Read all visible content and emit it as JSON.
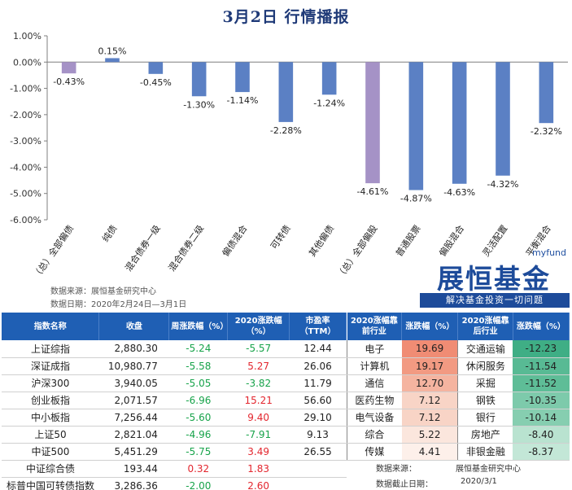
{
  "title": "3月2日  行情播报",
  "chart_data": {
    "type": "bar",
    "categories": [
      "（总）全部偏债",
      "纯债",
      "混合债券一级",
      "混合债券二级",
      "偏债混合",
      "可转债",
      "其他偏债",
      "（总）全部偏股",
      "普通股票",
      "偏股混合",
      "灵活配置",
      "平衡混合"
    ],
    "values": [
      -0.43,
      0.15,
      -0.45,
      -1.3,
      -1.14,
      -2.28,
      -1.24,
      -4.61,
      -4.87,
      -4.63,
      -4.32,
      -2.32
    ],
    "data_labels": [
      "-0.43%",
      "0.15%",
      "-0.45%",
      "-1.30%",
      "-1.14%",
      "-2.28%",
      "-1.24%",
      "-4.61%",
      "-4.87%",
      "-4.63%",
      "-4.32%",
      "-2.32%"
    ],
    "y_ticks": [
      "1.00%",
      "0.00%",
      "-1.00%",
      "-2.00%",
      "-3.00%",
      "-4.00%",
      "-5.00%",
      "-6.00%"
    ],
    "ylim": [
      -6,
      1
    ],
    "grid": false,
    "colors": {
      "highlight": "#a592c6",
      "normal": "#5b80c4",
      "axis": "#7f7f7f"
    },
    "highlighted": [
      0,
      7
    ]
  },
  "source": {
    "line1": "数据来源：展恒基金研究中心",
    "line2": "数据日期：2020年2月24日—3月1日"
  },
  "logo": {
    "myfund": "myfund",
    "main": "展恒基金",
    "slogan": "解决基金投资一切问题"
  },
  "table": {
    "headers": {
      "name": "指数名称",
      "close": "收盘",
      "week": "周涨跌幅（%）",
      "ytd": "2020涨跌幅（%）",
      "pe": "市盈率（TTM）",
      "top_ind": "2020涨幅靠前行业",
      "top_val": "涨跌幅（%）",
      "bot_ind": "2020涨幅靠后行业",
      "bot_val": "涨跌幅（%）"
    },
    "rows": [
      {
        "name": "上证综指",
        "close": "2,880.30",
        "week": "-5.24",
        "ytd": "-5.57",
        "pe": "12.44",
        "top_ind": "电子",
        "top_val": "19.69",
        "bot_ind": "交通运输",
        "bot_val": "-12.23"
      },
      {
        "name": "深证成指",
        "close": "10,980.77",
        "week": "-5.58",
        "ytd": "5.27",
        "pe": "26.06",
        "top_ind": "计算机",
        "top_val": "19.17",
        "bot_ind": "休闲服务",
        "bot_val": "-11.54"
      },
      {
        "name": "沪深300",
        "close": "3,940.05",
        "week": "-5.05",
        "ytd": "-3.82",
        "pe": "11.79",
        "top_ind": "通信",
        "top_val": "12.70",
        "bot_ind": "采掘",
        "bot_val": "-11.52"
      },
      {
        "name": "创业板指",
        "close": "2,071.57",
        "week": "-6.96",
        "ytd": "15.21",
        "pe": "56.60",
        "top_ind": "医药生物",
        "top_val": "7.12",
        "bot_ind": "钢铁",
        "bot_val": "-10.35"
      },
      {
        "name": "中小板指",
        "close": "7,256.44",
        "week": "-5.60",
        "ytd": "9.40",
        "pe": "29.10",
        "top_ind": "电气设备",
        "top_val": "7.12",
        "bot_ind": "银行",
        "bot_val": "-10.14"
      },
      {
        "name": "上证50",
        "close": "2,821.04",
        "week": "-4.96",
        "ytd": "-7.91",
        "pe": "9.13",
        "top_ind": "综合",
        "top_val": "5.22",
        "bot_ind": "房地产",
        "bot_val": "-8.40"
      },
      {
        "name": "中证500",
        "close": "5,451.29",
        "week": "-5.75",
        "ytd": "3.49",
        "pe": "26.55",
        "top_ind": "传媒",
        "top_val": "4.41",
        "bot_ind": "非银金融",
        "bot_val": "-8.37"
      },
      {
        "name": "中证综合债",
        "close": "193.44",
        "week": "0.32",
        "ytd": "1.83",
        "pe": "",
        "top_ind": "",
        "top_val": "",
        "bot_ind": "",
        "bot_val": ""
      },
      {
        "name": "标普中国可转债指数",
        "close": "3,286.36",
        "week": "-2.00",
        "ytd": "2.60",
        "pe": "",
        "top_ind": "",
        "top_val": "",
        "bot_ind": "",
        "bot_val": ""
      }
    ]
  },
  "footer": {
    "source_label": "数据来源：",
    "source_value": "展恒基金研究中心",
    "date_label": "数据截止日期：",
    "date_value": "2020/3/1"
  }
}
